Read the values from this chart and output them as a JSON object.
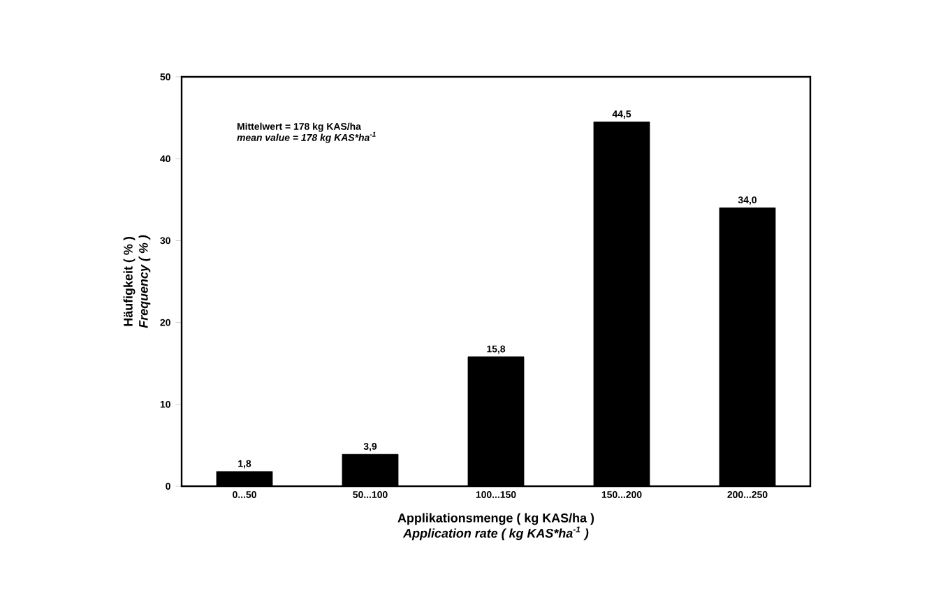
{
  "chart_data": {
    "type": "bar",
    "categories": [
      "0...50",
      "50...100",
      "100...150",
      "150...200",
      "200...250"
    ],
    "values": [
      1.8,
      3.9,
      15.8,
      44.5,
      34.0
    ],
    "value_labels": [
      "1,8",
      "3,9",
      "15,8",
      "44,5",
      "34,0"
    ],
    "color": "#000000",
    "ylim": [
      0,
      50
    ],
    "yticks": [
      0,
      10,
      20,
      30,
      40,
      50
    ],
    "xlabel": [
      "Applikationsmenge ( kg KAS/ha )",
      "Application rate ( kg KAS*ha$^{-1}$ )"
    ],
    "ylabel": [
      "Häufigkeit ( % )",
      "Frequency ( % )"
    ],
    "annotations": [
      "Mittelwert = 178 kg KAS/ha",
      "mean value = 178 kg KAS*ha$^{-1}$"
    ]
  }
}
